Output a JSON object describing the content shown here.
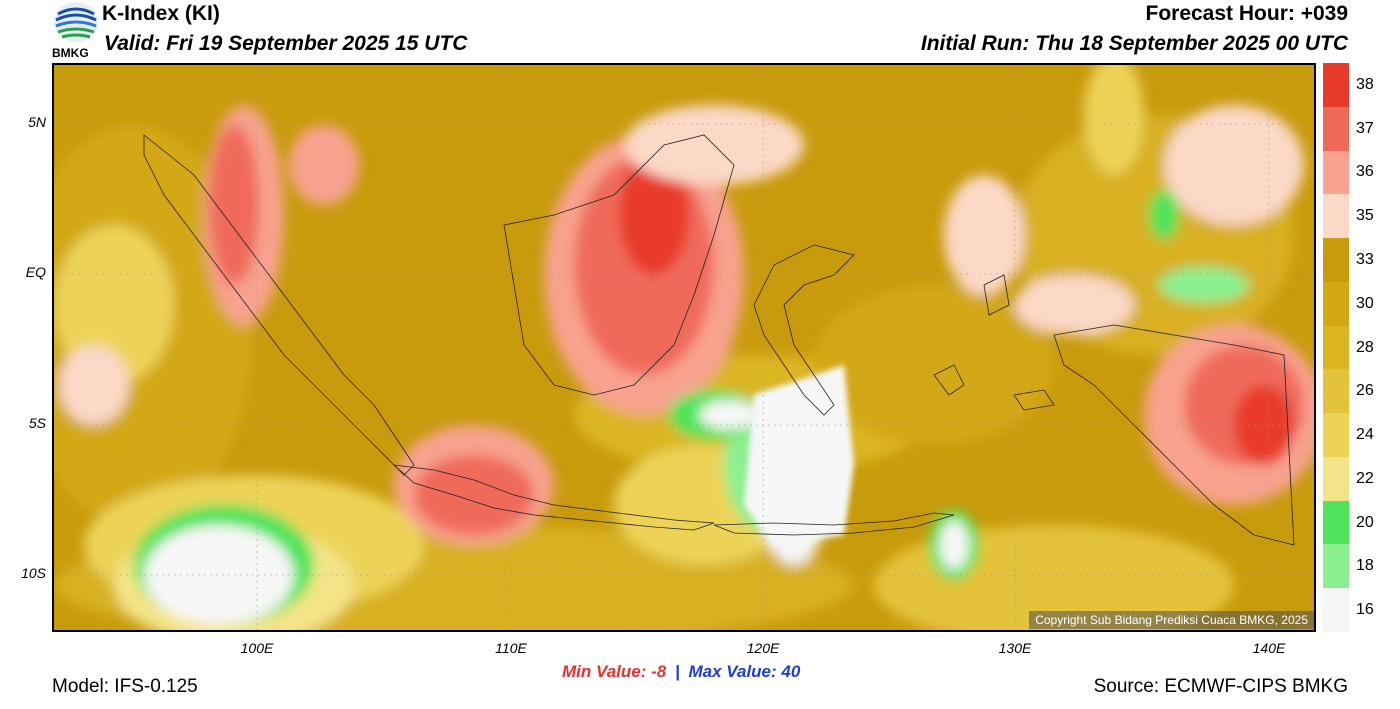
{
  "header": {
    "title": "K-Index (KI)",
    "valid": "Valid: Fri 19 September 2025 15 UTC",
    "forecast_hour": "Forecast Hour: +039",
    "initial_run": "Initial Run: Thu 18 September 2025 00 UTC"
  },
  "logo": {
    "text": "BMKG",
    "icon": "bmkg-logo-icon"
  },
  "map": {
    "lat_labels": [
      "5N",
      "EQ",
      "5S",
      "10S"
    ],
    "lon_labels": [
      "100E",
      "110E",
      "120E",
      "130E",
      "140E"
    ],
    "copyright": "Copyright Sub Bidang Prediksi Cuaca BMKG, 2025"
  },
  "colorbar": {
    "labels": [
      "38",
      "37",
      "36",
      "35",
      "33",
      "30",
      "28",
      "26",
      "24",
      "22",
      "20",
      "18",
      "16"
    ],
    "colors": [
      "#e83a2a",
      "#f06a5a",
      "#f8a28f",
      "#fcd8c6",
      "#c89b0c",
      "#d3a812",
      "#dcb520",
      "#e4c33a",
      "#ecd358",
      "#f4e488",
      "#4de35a",
      "#8cf090",
      "#f6f6f6"
    ]
  },
  "footer": {
    "min_label": "Min Value:",
    "min_value": "-8",
    "separator": "|",
    "max_label": "Max Value:",
    "max_value": "40",
    "model": "Model: IFS-0.125",
    "source": "Source: ECMWF-CIPS BMKG"
  }
}
